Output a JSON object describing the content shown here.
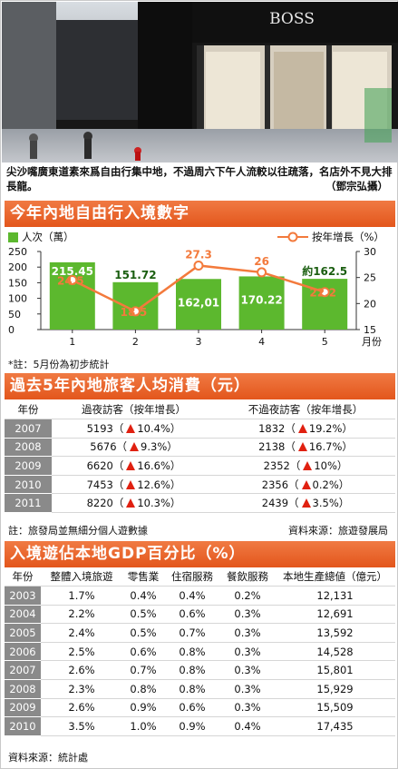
{
  "photo": {
    "storefront_sign": "BOSS"
  },
  "caption": {
    "text": "尖沙嘴廣東道素來爲自由行集中地，不過周六下午人流較以往疏落，名店外不見大排長龍。",
    "credit": "（鄧宗弘攝）"
  },
  "section1": {
    "title": "今年內地自由行入境數字"
  },
  "chart_data": {
    "type": "bar",
    "title": "今年內地自由行入境數字",
    "categories": [
      "1",
      "2",
      "3",
      "4",
      "5"
    ],
    "xlabel": "月份",
    "series": [
      {
        "name": "人次（萬）",
        "kind": "bar",
        "values": [
          215.45,
          151.72,
          162.01,
          170.22,
          162.5
        ],
        "labels": [
          "215.45",
          "151.72",
          "162,01",
          "170.22",
          "約162.5"
        ]
      },
      {
        "name": "按年增長（%）",
        "kind": "line",
        "values": [
          24.5,
          18.5,
          27.3,
          26,
          22.2
        ],
        "labels": [
          "24.5",
          "18.5",
          "27.3",
          "26",
          "22.2"
        ]
      }
    ],
    "left_axis": {
      "ticks": [
        "250",
        "200",
        "150",
        "100",
        "50",
        "0"
      ],
      "ylim": [
        0,
        250
      ]
    },
    "right_axis": {
      "ticks": [
        "30",
        "25",
        "20",
        "15"
      ],
      "ylim": [
        15,
        30
      ]
    },
    "note": "*註：5月份為初步統計",
    "colors": {
      "bar": "#5cb82e",
      "line": "#f37a3c"
    }
  },
  "section2": {
    "title": "過去5年內地旅客人均消費（元）",
    "headers": [
      "年份",
      "過夜訪客（按年增長）",
      "不過夜訪客（按年增長）"
    ],
    "rows": [
      {
        "year": "2007",
        "ov": "5193（",
        "ovg": "10.4%）",
        "nov": "1832（",
        "novg": "19.2%）"
      },
      {
        "year": "2008",
        "ov": "5676（",
        "ovg": "9.3%）",
        "nov": "2138（",
        "novg": "16.7%）"
      },
      {
        "year": "2009",
        "ov": "6620（",
        "ovg": "16.6%）",
        "nov": "2352（",
        "novg": "10%）"
      },
      {
        "year": "2010",
        "ov": "7453（",
        "ovg": "12.6%）",
        "nov": "2356（",
        "novg": "0.2%）"
      },
      {
        "year": "2011",
        "ov": "8220（",
        "ovg": "10.3%）",
        "nov": "2439（",
        "novg": "3.5%）"
      }
    ],
    "note": "註：旅發局並無細分個人遊數據",
    "source": "資料來源：旅遊發展局"
  },
  "section3": {
    "title": "入境遊佔本地GDP百分比（%）",
    "headers": [
      "年份",
      "整體入境旅遊",
      "零售業",
      "住宿服務",
      "餐飲服務",
      "本地生產總値（億元）"
    ],
    "rows": [
      [
        "2003",
        "1.7%",
        "0.4%",
        "0.4%",
        "0.2%",
        "12,131"
      ],
      [
        "2004",
        "2.2%",
        "0.5%",
        "0.6%",
        "0.3%",
        "12,691"
      ],
      [
        "2005",
        "2.4%",
        "0.5%",
        "0.7%",
        "0.3%",
        "13,592"
      ],
      [
        "2006",
        "2.5%",
        "0.6%",
        "0.8%",
        "0.3%",
        "14,528"
      ],
      [
        "2007",
        "2.6%",
        "0.7%",
        "0.8%",
        "0.3%",
        "15,801"
      ],
      [
        "2008",
        "2.3%",
        "0.8%",
        "0.8%",
        "0.3%",
        "15,929"
      ],
      [
        "2009",
        "2.6%",
        "0.9%",
        "0.6%",
        "0.3%",
        "15,509"
      ],
      [
        "2010",
        "3.5%",
        "1.0%",
        "0.9%",
        "0.4%",
        "17,435"
      ]
    ],
    "source": "資料來源：統計處"
  }
}
